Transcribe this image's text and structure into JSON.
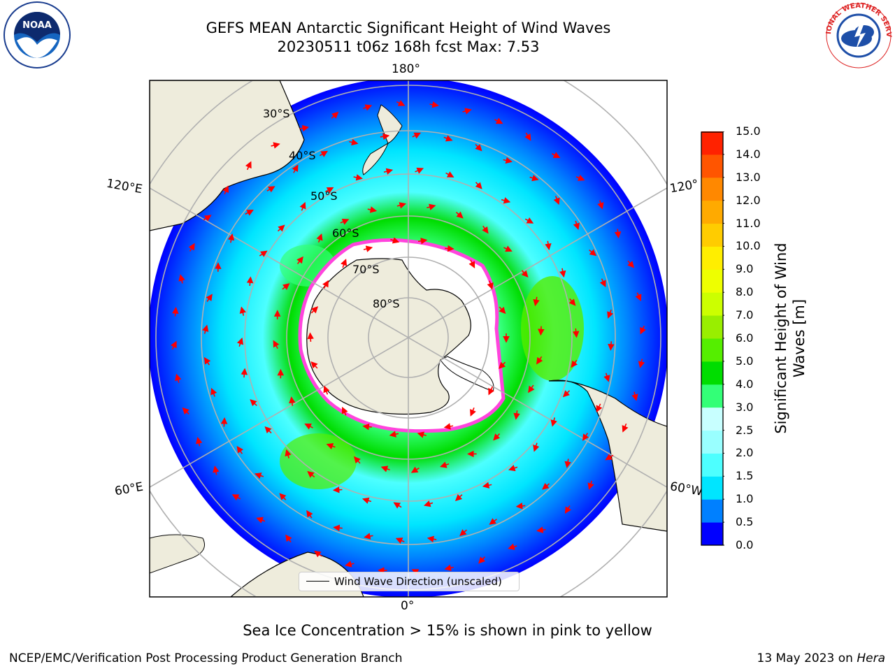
{
  "header": {
    "title_line1": "GEFS MEAN Antarctic Significant Height of Wind Waves",
    "title_line2": "20230511 t06z 168h fcst   Max: 7.53"
  },
  "map": {
    "projection": "south-polar-stereographic",
    "lon_labels": {
      "top": "180°",
      "bottom": "0°",
      "upper_left": "120°E",
      "upper_right": "120°",
      "lower_left": "60°E",
      "lower_right": "60°W"
    },
    "lat_labels": [
      "30°S",
      "40°S",
      "50°S",
      "60°S",
      "70°S",
      "80°S"
    ],
    "legend_label": "Wind Wave Direction (unscaled)",
    "colors": {
      "land": "#eeecdc",
      "ice": "#ffffff",
      "ice_edge": "#ff44dd",
      "arrow": "#ff0000",
      "grid": "#b0b0b0"
    }
  },
  "colorbar": {
    "title": "Significant Height of Wind Waves [m]",
    "title_line1": "Significant Height of Wind",
    "title_line2": "Waves [m]",
    "ticks": [
      "0.0",
      "0.5",
      "1.0",
      "1.5",
      "2.0",
      "2.5",
      "3.0",
      "4.0",
      "5.0",
      "6.0",
      "7.0",
      "8.0",
      "9.0",
      "10.0",
      "11.0",
      "12.0",
      "13.0",
      "14.0",
      "15.0"
    ],
    "colors": [
      "#0000ff",
      "#0080ff",
      "#00e5ff",
      "#4dffff",
      "#99ffff",
      "#c8ffff",
      "#33ff77",
      "#00dd00",
      "#55ee00",
      "#99ee00",
      "#ccff00",
      "#eeff00",
      "#ffee00",
      "#ffcc00",
      "#ffaa00",
      "#ff8800",
      "#ff5500",
      "#ff2200"
    ]
  },
  "notes": {
    "sea_ice": "Sea Ice Concentration > 15% is shown in pink to yellow",
    "credit_left": "NCEP/EMC/Verification Post Processing Product Generation Branch",
    "credit_right_date": "13 May 2023 on",
    "credit_right_host": "Hera"
  },
  "logos": {
    "noaa": "NOAA",
    "nws": "NATIONAL WEATHER SERVICE"
  }
}
